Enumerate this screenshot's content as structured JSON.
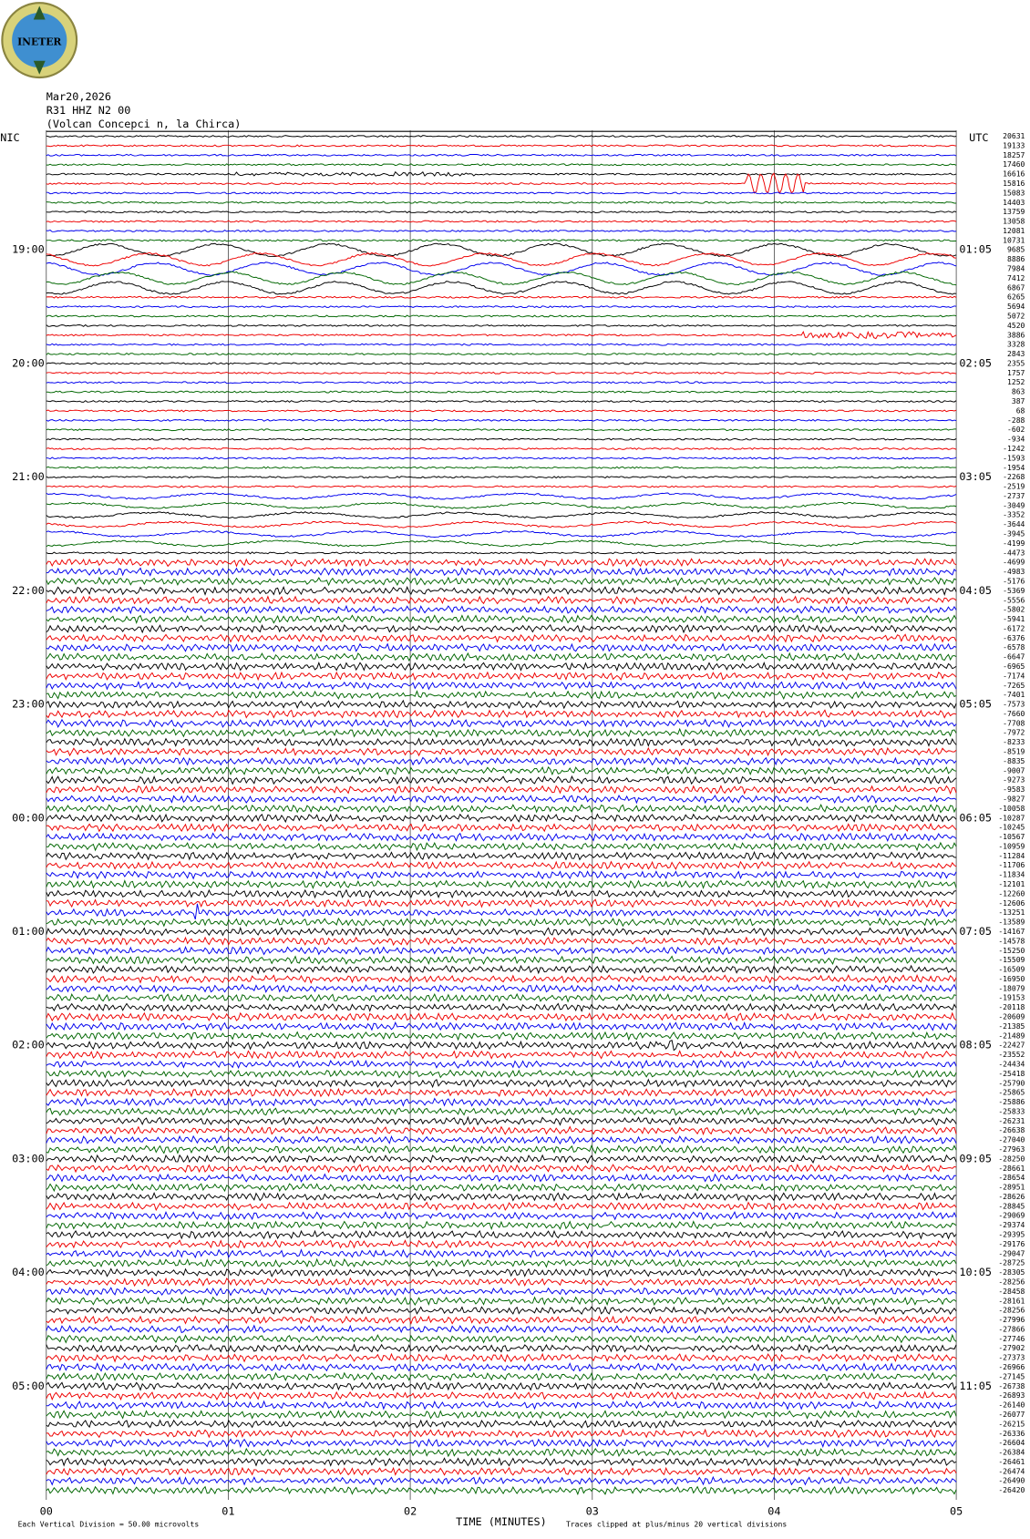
{
  "header": {
    "logo": "INETER",
    "date": "Mar20,2026",
    "station": "R31 HHZ N2 00",
    "location": "(Volcan Concepci  n, la Chirca)"
  },
  "left_label": "NIC",
  "right_label": "UTC",
  "left_times": [
    "19:00",
    "20:00",
    "21:00",
    "22:00",
    "23:00",
    "00:00",
    "01:00",
    "02:00",
    "03:00",
    "04:00",
    "05:00"
  ],
  "right_times": [
    "01:05",
    "02:05",
    "03:05",
    "04:05",
    "05:05",
    "06:05",
    "07:05",
    "08:05",
    "09:05",
    "10:05",
    "11:05"
  ],
  "x_labels": [
    "00",
    "01",
    "02",
    "03",
    "04",
    "05"
  ],
  "x_title": "TIME (MINUTES)",
  "footer": {
    "scale": "Each Vertical Division =    50.00 microvolts",
    "clip": "Traces clipped at plus/minus 20 vertical divisions"
  },
  "offsets": [
    "20631",
    "19133",
    "18257",
    "17460",
    "16616",
    "15816",
    "15083",
    "14403",
    "13759",
    "13058",
    "12081",
    "10731",
    "9685",
    "8886",
    "7984",
    "7412",
    "6867",
    "6265",
    "5694",
    "5072",
    "4520",
    "3886",
    "3328",
    "2843",
    "2355",
    "1757",
    "1252",
    "863",
    "387",
    "68",
    "-288",
    "-602",
    "-934",
    "-1242",
    "-1593",
    "-1954",
    "-2268",
    "-2519",
    "-2737",
    "-3049",
    "-3352",
    "-3644",
    "-3945",
    "-4199",
    "-4473",
    "-4699",
    "-4983",
    "-5176",
    "-5369",
    "-5556",
    "-5802",
    "-5941",
    "-6172",
    "-6376",
    "-6578",
    "-6647",
    "-6965",
    "-7174",
    "-7265",
    "-7401",
    "-7573",
    "-7660",
    "-7708",
    "-7972",
    "-8233",
    "-8519",
    "-8835",
    "-9007",
    "-9273",
    "-9583",
    "-9827",
    "-10058",
    "-10287",
    "-10245",
    "-10567",
    "-10959",
    "-11284",
    "-11706",
    "-11834",
    "-12101",
    "-12260",
    "-12606",
    "-13251",
    "-13589",
    "-14167",
    "-14578",
    "-15250",
    "-15509",
    "-16509",
    "-16950",
    "-18079",
    "-19153",
    "-20118",
    "-20609",
    "-21385",
    "-21489",
    "-22427",
    "-23552",
    "-24434",
    "-25418",
    "-25790",
    "-25865",
    "-25886",
    "-25833",
    "-26231",
    "-26638",
    "-27040",
    "-27963",
    "-28250",
    "-28661",
    "-28654",
    "-28951",
    "-28626",
    "-28845",
    "-29069",
    "-29374",
    "-29395",
    "-29176",
    "-29047",
    "-28725",
    "-28305",
    "-28256",
    "-28458",
    "-28161",
    "-28256",
    "-27996",
    "-27866",
    "-27746",
    "-27902",
    "-27373",
    "-26966",
    "-27145",
    "-26738",
    "-26893",
    "-26140",
    "-26077",
    "-26215",
    "-26336",
    "-26604",
    "-26384",
    "-26461",
    "-26474",
    "-26490",
    "-26420"
  ]
}
